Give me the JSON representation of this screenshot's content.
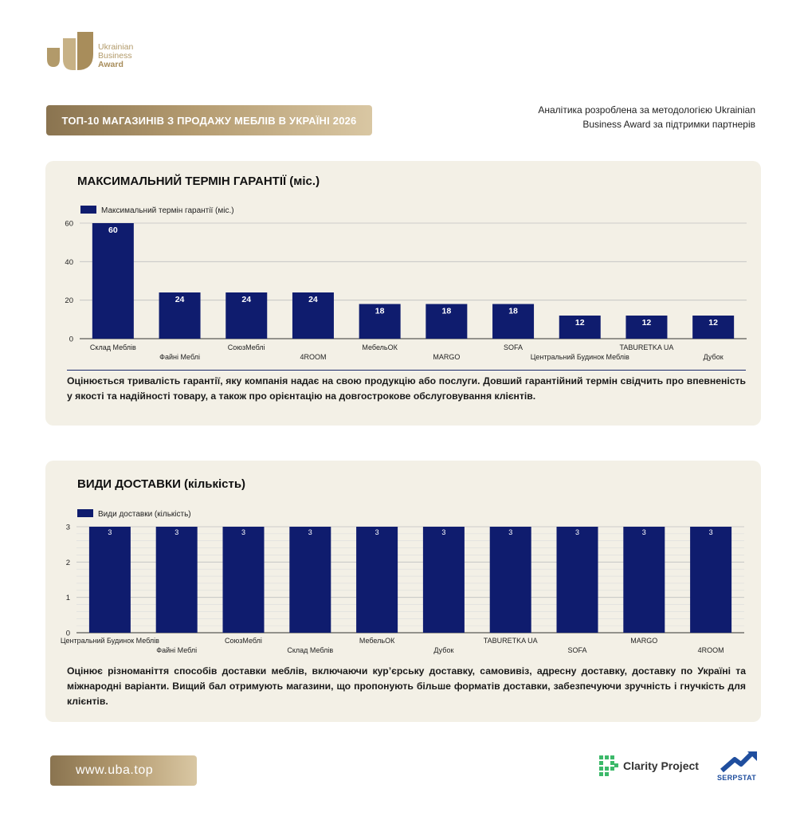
{
  "brand": {
    "logo_lines": [
      "Ukrainian",
      "Business",
      "Award"
    ],
    "gold": "#b49b70"
  },
  "header": {
    "title": "ТОП-10 МАГАЗИНІВ З ПРОДАЖУ МЕБЛІВ В УКРАЇНІ 2026",
    "methodology": "Аналітика розроблена за методологією Ukrainian Business Award за підтримки партнерів"
  },
  "section1": {
    "title": "МАКСИМАЛЬНИЙ ТЕРМІН ГАРАНТІЇ (міс.)",
    "description": "Оцінюється тривалість гарантії, яку компанія надає на свою продукцію або послуги. Довший гарантійний термін свідчить про впевненість у якості та надійності товару, а також про орієнтацію на довгострокове обслуговування клієнтів."
  },
  "section2": {
    "title": "ВИДИ ДОСТАВКИ (кількість)",
    "description": "Оцінює різноманіття способів доставки меблів, включаючи кур’єрську доставку, самовивіз, адресну доставку, доставку по Україні та міжнародні варіанти. Вищий бал отримують магазини, що пропонують більше форматів доставки, забезпечуючи зручність і гнучкість для клієнтів."
  },
  "chart_data": [
    {
      "type": "bar",
      "categories": [
        "Склад Меблів",
        "Файні Меблі",
        "СоюзМеблі",
        "4ROOM",
        "МебельОК",
        "MARGO",
        "SOFA",
        "Центральний Будинок Меблів",
        "TABURETKA UA",
        "Дубок"
      ],
      "series": [
        {
          "name": "Максимальний термін гарантії (міс.)",
          "values": [
            60,
            24,
            24,
            24,
            18,
            18,
            18,
            12,
            12,
            12
          ],
          "color": "#0f1c6e"
        }
      ],
      "ylim": [
        0,
        60
      ],
      "yticks": [
        0,
        20,
        40,
        60
      ],
      "data_labels": true,
      "legend": "top-left",
      "grid": true
    },
    {
      "type": "bar",
      "categories": [
        "Центральний Будинок Меблів",
        "Файні Меблі",
        "СоюзМеблі",
        "Склад Меблів",
        "МебельОК",
        "Дубок",
        "TABURETKA UA",
        "SOFA",
        "MARGO",
        "4ROOM"
      ],
      "series": [
        {
          "name": "Види доставки (кількість)",
          "values": [
            3,
            3,
            3,
            3,
            3,
            3,
            3,
            3,
            3,
            3
          ],
          "color": "#0f1c6e"
        }
      ],
      "ylim": [
        0,
        3
      ],
      "yticks": [
        0,
        1,
        2,
        3
      ],
      "data_labels": true,
      "legend": "top-left",
      "grid": true
    }
  ],
  "footer": {
    "url": "www.uba.top",
    "partner1": "Clarity Project",
    "partner2": "SERPSTAT"
  }
}
